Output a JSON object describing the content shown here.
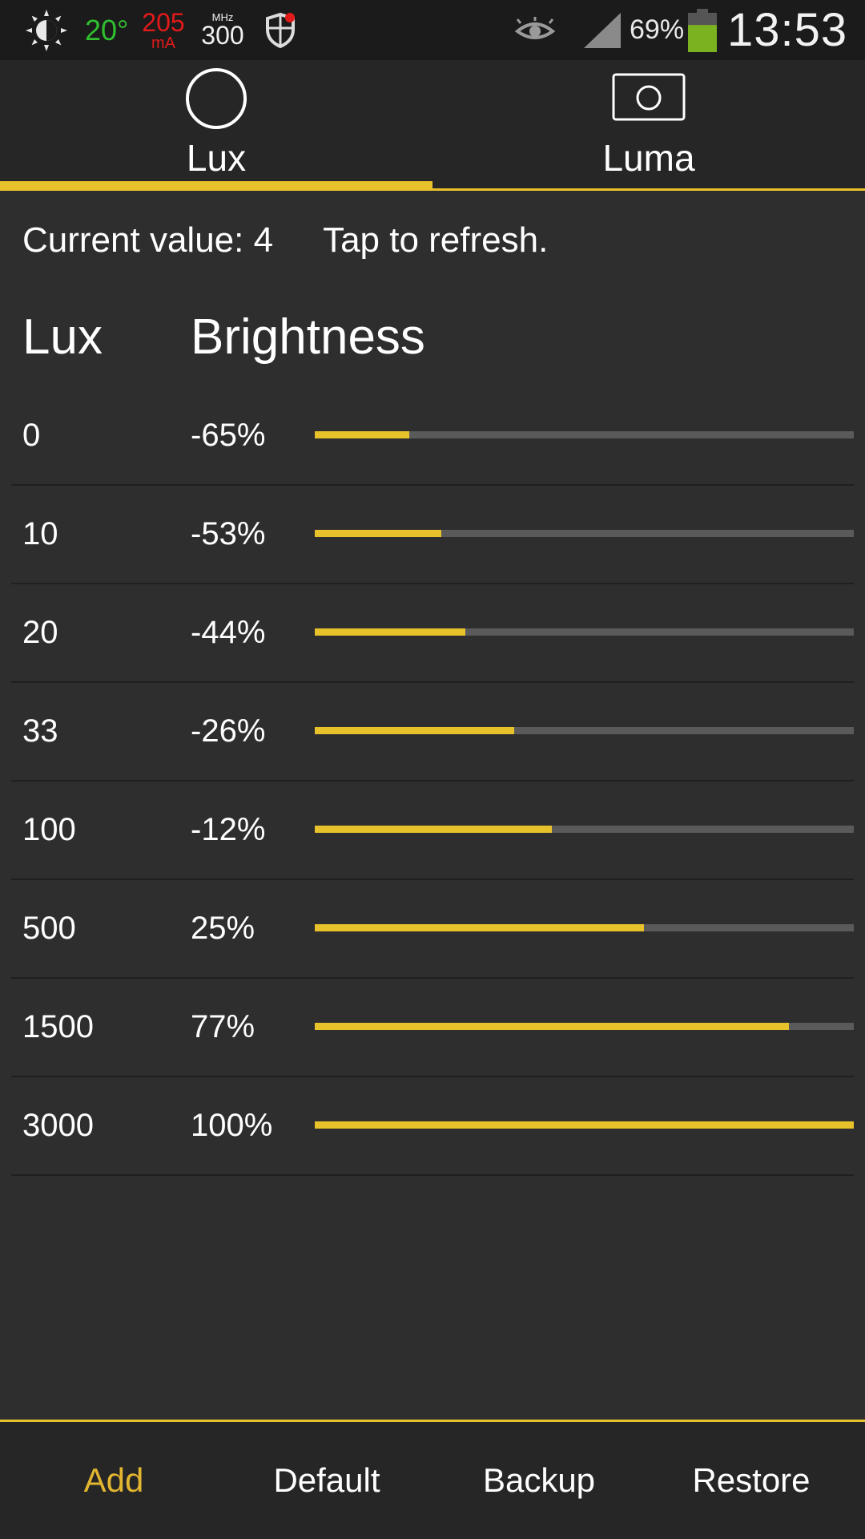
{
  "status_bar": {
    "temperature": "20°",
    "current_value": "205",
    "current_unit": "mA",
    "cpu_unit": "MHz",
    "cpu_value": "300",
    "battery_percent": "69%",
    "battery_level": 0.69,
    "clock": "13:53",
    "icons": [
      "brightness-auto-icon",
      "shield-icon",
      "eye-icon",
      "signal-icon",
      "battery-icon"
    ],
    "colors": {
      "temperature": "#2fbf2f",
      "current": "#e31a1a",
      "battery": "#7bb320"
    }
  },
  "tabs": [
    {
      "label": "Lux",
      "icon": "circle-icon",
      "active": true
    },
    {
      "label": "Luma",
      "icon": "camera-frame-icon",
      "active": false
    }
  ],
  "current": {
    "text": "Current value: 4",
    "refresh_text": "Tap to refresh."
  },
  "table": {
    "headers": {
      "lux": "Lux",
      "brightness": "Brightness"
    },
    "rows": [
      {
        "lux": "0",
        "brightness": "-65%",
        "level": 0.175
      },
      {
        "lux": "10",
        "brightness": "-53%",
        "level": 0.235
      },
      {
        "lux": "20",
        "brightness": "-44%",
        "level": 0.28
      },
      {
        "lux": "33",
        "brightness": "-26%",
        "level": 0.37
      },
      {
        "lux": "100",
        "brightness": "-12%",
        "level": 0.44
      },
      {
        "lux": "500",
        "brightness": "25%",
        "level": 0.61
      },
      {
        "lux": "1500",
        "brightness": "77%",
        "level": 0.88
      },
      {
        "lux": "3000",
        "brightness": "100%",
        "level": 1.0
      }
    ]
  },
  "bottom_bar": {
    "add_label": "Add",
    "default_label": "Default",
    "backup_label": "Backup",
    "restore_label": "Restore"
  },
  "colors": {
    "accent": "#e8c22a",
    "background": "#2e2e2e",
    "track": "#5a5a5a"
  }
}
